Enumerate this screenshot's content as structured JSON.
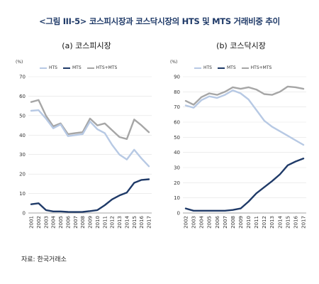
{
  "figure_title": "<그림 III-5> 코스피시장과 코스닥시장의 HTS 및 MTS 거래비중 추이",
  "source": "자료: 한국거래소",
  "colors": {
    "HTS": "#b7c9e4",
    "MTS": "#1f3a68",
    "HTS+MTS": "#a6a6a6"
  },
  "chart_data": [
    {
      "type": "line",
      "title": "(a) 코스피시장",
      "ylabel": "(%)",
      "ylim": [
        0,
        70
      ],
      "yticks": [
        0,
        10,
        20,
        30,
        40,
        50,
        60,
        70
      ],
      "x": [
        "2001",
        "2002",
        "2003",
        "2004",
        "2005",
        "2006",
        "2007",
        "2008",
        "2009",
        "2010",
        "2011",
        "2012",
        "2013",
        "2014",
        "2015",
        "2016",
        "2017"
      ],
      "series": [
        {
          "name": "HTS",
          "values": [
            52.5,
            52.8,
            48.5,
            43.5,
            45.5,
            39.5,
            40,
            40.5,
            47,
            43,
            41,
            35,
            30,
            27.5,
            32.5,
            28,
            24
          ]
        },
        {
          "name": "MTS",
          "values": [
            4.5,
            5,
            1.5,
            0.8,
            0.8,
            0.6,
            0.5,
            0.6,
            1,
            1.5,
            4,
            7,
            9,
            10.5,
            15.5,
            17,
            17.3
          ]
        },
        {
          "name": "HTS+MTS",
          "values": [
            57,
            58,
            50,
            44.5,
            46,
            40.5,
            41,
            41.5,
            48.5,
            45,
            46,
            42.5,
            39,
            38,
            48,
            45,
            41.5
          ]
        }
      ],
      "grid": "horizontal",
      "legend": "top-left"
    },
    {
      "type": "line",
      "title": "(b) 코스닥시장",
      "ylabel": "(%)",
      "ylim": [
        0,
        90
      ],
      "yticks": [
        0,
        10,
        20,
        30,
        40,
        50,
        60,
        70,
        80,
        90
      ],
      "x": [
        "2002",
        "2003",
        "2004",
        "2005",
        "2006",
        "2007",
        "2008",
        "2009",
        "2010",
        "2011",
        "2012",
        "2013",
        "2014",
        "2015",
        "2016",
        "2017"
      ],
      "series": [
        {
          "name": "HTS",
          "values": [
            71,
            69.5,
            74.5,
            77,
            76,
            78,
            81,
            79,
            75,
            68,
            61,
            57,
            54,
            51,
            48,
            45
          ]
        },
        {
          "name": "MTS",
          "values": [
            3,
            1.5,
            1.5,
            1.5,
            1.5,
            1.5,
            2,
            3,
            7.5,
            13,
            17,
            21,
            25.5,
            31.5,
            34,
            36
          ]
        },
        {
          "name": "HTS+MTS",
          "values": [
            74,
            71.5,
            76.5,
            79,
            78,
            80,
            83,
            82,
            83,
            81.5,
            78.5,
            78,
            80,
            83.5,
            83,
            82
          ]
        }
      ],
      "grid": "horizontal",
      "legend": "top-left"
    }
  ]
}
